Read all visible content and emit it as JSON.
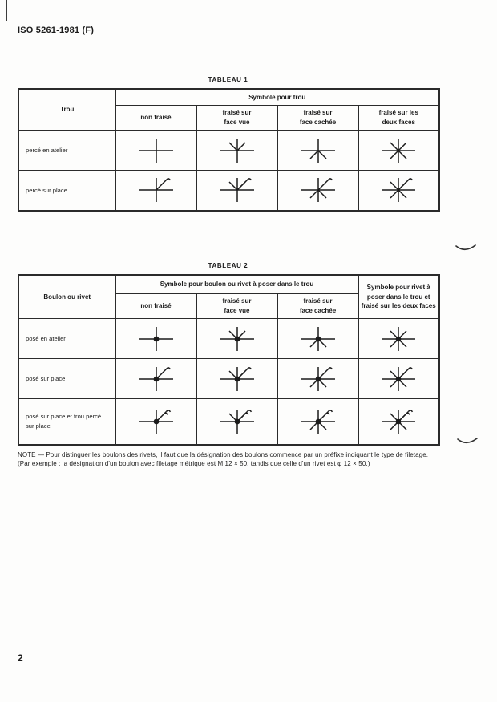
{
  "page": {
    "doc_ref": "ISO 5261-1981 (F)",
    "page_number": "2"
  },
  "table1": {
    "title": "TABLEAU 1",
    "corner_header": "Trou",
    "group_header": "Symbole pour trou",
    "col_headers": [
      "non fraisé",
      "fraisé sur\nface vue",
      "fraisé sur\nface cachée",
      "fraisé sur les\ndeux faces"
    ],
    "rows": [
      {
        "label": "percé en atelier",
        "symbols": [
          {
            "name": "trou-non-fraise-atelier",
            "parts": [
              "cross"
            ]
          },
          {
            "name": "trou-fraise-face-vue-atelier",
            "parts": [
              "cross",
              "vee-up"
            ]
          },
          {
            "name": "trou-fraise-face-cachee-atelier",
            "parts": [
              "cross",
              "vee-down"
            ]
          },
          {
            "name": "trou-fraise-deux-faces-atelier",
            "parts": [
              "cross",
              "diag-x"
            ]
          }
        ]
      },
      {
        "label": "percé sur place",
        "symbols": [
          {
            "name": "trou-non-fraise-sur-place",
            "parts": [
              "cross",
              "flag"
            ]
          },
          {
            "name": "trou-fraise-face-vue-sur-place",
            "parts": [
              "cross",
              "vee-up",
              "flag"
            ]
          },
          {
            "name": "trou-fraise-face-cachee-sur-place",
            "parts": [
              "cross",
              "vee-down",
              "flag"
            ]
          },
          {
            "name": "trou-fraise-deux-faces-sur-place",
            "parts": [
              "cross",
              "diag-x",
              "flag"
            ]
          }
        ]
      }
    ]
  },
  "table2": {
    "title": "TABLEAU 2",
    "corner_header": "Boulon ou rivet",
    "group_header": "Symbole pour boulon ou rivet à poser dans le trou",
    "col_headers": [
      "non fraisé",
      "fraisé sur\nface vue",
      "fraisé sur\nface cachée"
    ],
    "last_col_header": "Symbole pour rivet à\nposer dans le trou et\nfraisé sur les deux faces",
    "rows": [
      {
        "label": "posé en atelier",
        "symbols": [
          {
            "name": "boulon-non-fraise-atelier",
            "parts": [
              "cross",
              "dot"
            ]
          },
          {
            "name": "boulon-fraise-face-vue-atelier",
            "parts": [
              "cross",
              "vee-up",
              "dot"
            ]
          },
          {
            "name": "boulon-fraise-face-cachee-atelier",
            "parts": [
              "cross",
              "vee-down",
              "dot"
            ]
          },
          {
            "name": "rivet-fraise-deux-faces-atelier",
            "parts": [
              "cross",
              "diag-x",
              "dot"
            ]
          }
        ]
      },
      {
        "label": "posé sur place",
        "symbols": [
          {
            "name": "boulon-non-fraise-sur-place",
            "parts": [
              "cross",
              "dot",
              "flag"
            ]
          },
          {
            "name": "boulon-fraise-face-vue-sur-place",
            "parts": [
              "cross",
              "vee-up",
              "dot",
              "flag"
            ]
          },
          {
            "name": "boulon-fraise-face-cachee-sur-place",
            "parts": [
              "cross",
              "vee-down",
              "dot",
              "flag"
            ]
          },
          {
            "name": "rivet-fraise-deux-faces-sur-place",
            "parts": [
              "cross",
              "diag-x",
              "dot",
              "flag"
            ]
          }
        ]
      },
      {
        "label": "posé sur place et trou percé\nsur place",
        "symbols": [
          {
            "name": "boulon-non-fraise-tout-sur-place",
            "parts": [
              "cross",
              "dot",
              "flag-double"
            ]
          },
          {
            "name": "boulon-fraise-face-vue-tout-sur-place",
            "parts": [
              "cross",
              "vee-up",
              "dot",
              "flag-double"
            ]
          },
          {
            "name": "boulon-fraise-face-cachee-tout-sur-place",
            "parts": [
              "cross",
              "vee-down",
              "dot",
              "flag-double"
            ]
          },
          {
            "name": "rivet-fraise-deux-faces-tout-sur-place",
            "parts": [
              "cross",
              "diag-x",
              "dot",
              "flag-double"
            ]
          }
        ]
      }
    ]
  },
  "note": {
    "text": "NOTE — Pour distinguer les boulons des rivets, il faut que la désignation des boulons commence par un préfixe indiquant le type de filetage.\n(Par exemple : la désignation d'un boulon avec filetage métrique est M 12 × 50, tandis que celle d'un rivet est φ 12 × 50.)"
  },
  "colors": {
    "ink": "#1b1b1b",
    "border": "#2b2b2b",
    "paper": "#fdfdfc"
  }
}
